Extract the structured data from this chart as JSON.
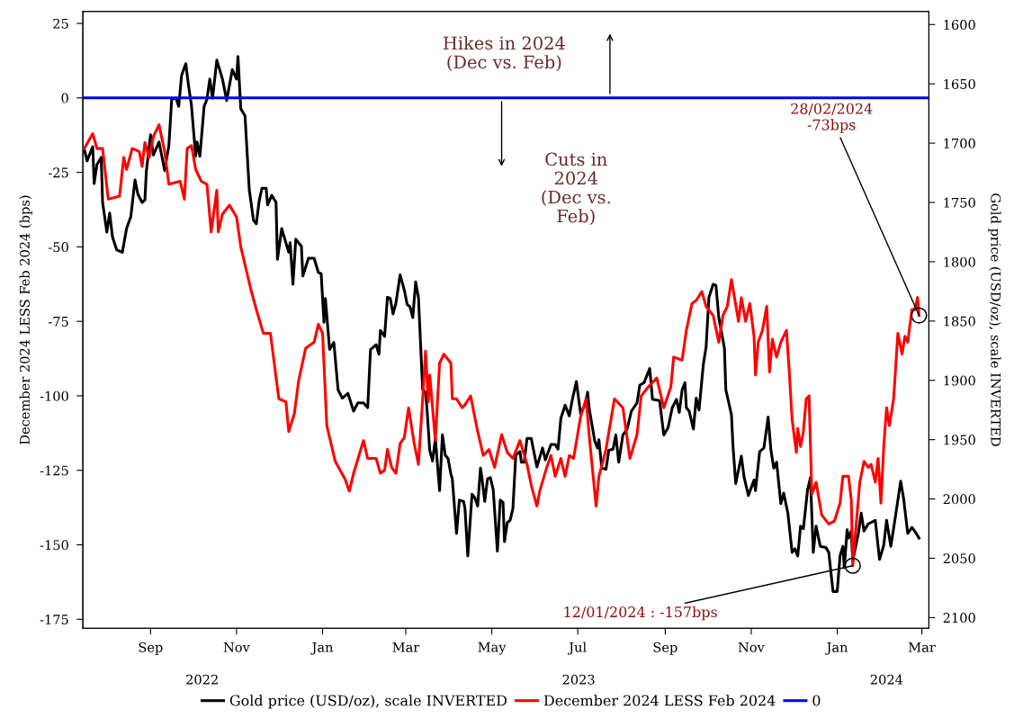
{
  "chart_data": {
    "type": "line",
    "ylabel": "December 2024 LESS Feb 2024 (bps)",
    "y2label": "Gold price (USD/oz), scale INVERTED",
    "xlim": [
      "2022-07-15",
      "2024-03-06"
    ],
    "xticks": [
      {
        "value": "2022-09-01",
        "label": "Sep"
      },
      {
        "value": "2022-11-01",
        "label": "Nov"
      },
      {
        "value": "2023-01-01",
        "label": "Jan"
      },
      {
        "value": "2023-03-01",
        "label": "Mar"
      },
      {
        "value": "2023-05-01",
        "label": "May"
      },
      {
        "value": "2023-07-01",
        "label": "Jul"
      },
      {
        "value": "2023-09-01",
        "label": "Sep"
      },
      {
        "value": "2023-11-01",
        "label": "Nov"
      },
      {
        "value": "2024-01-01",
        "label": "Jan"
      },
      {
        "value": "2024-03-01",
        "label": "Mar"
      }
    ],
    "ylim": [
      -178,
      29
    ],
    "yticks": [
      25,
      0,
      -25,
      -50,
      -75,
      -100,
      -125,
      -150,
      -175
    ],
    "y2lim": [
      2109,
      1589
    ],
    "y2ticks": [
      1600,
      1650,
      1700,
      1750,
      1800,
      1850,
      1900,
      1950,
      2000,
      2050,
      2100
    ],
    "grid": false,
    "legend": "bottom",
    "series": [
      {
        "name": "Gold price (USD/oz), scale INVERTED",
        "color": "#000000",
        "axis": "y2",
        "x": [
          "2022-07-16",
          "2022-07-18",
          "2022-07-22",
          "2022-07-23",
          "2022-07-25",
          "2022-07-28",
          "2022-07-29",
          "2022-08-01",
          "2022-08-03",
          "2022-08-05",
          "2022-08-08",
          "2022-08-12",
          "2022-08-15",
          "2022-08-18",
          "2022-08-21",
          "2022-08-23",
          "2022-08-26",
          "2022-08-28",
          "2022-08-29",
          "2022-09-01",
          "2022-09-03",
          "2022-09-07",
          "2022-09-11",
          "2022-09-14",
          "2022-09-16",
          "2022-09-19",
          "2022-09-21",
          "2022-09-23",
          "2022-09-26",
          "2022-09-28",
          "2022-09-30",
          "2022-10-03",
          "2022-10-04",
          "2022-10-06",
          "2022-10-09",
          "2022-10-11",
          "2022-10-13",
          "2022-10-15",
          "2022-10-18",
          "2022-10-22",
          "2022-10-25",
          "2022-10-29",
          "2022-11-01",
          "2022-11-02",
          "2022-11-04",
          "2022-11-07",
          "2022-11-10",
          "2022-11-13",
          "2022-11-15",
          "2022-11-17",
          "2022-11-19",
          "2022-11-22",
          "2022-11-23",
          "2022-11-26",
          "2022-11-29",
          "2022-11-30",
          "2022-12-03",
          "2022-12-08",
          "2022-12-09",
          "2022-12-11",
          "2022-12-13",
          "2022-12-17",
          "2022-12-18",
          "2022-12-22",
          "2022-12-26",
          "2022-12-29",
          "2022-12-31",
          "2023-01-02",
          "2023-01-03",
          "2023-01-06",
          "2023-01-09",
          "2023-01-12",
          "2023-01-15",
          "2023-01-17",
          "2023-01-19",
          "2023-01-23",
          "2023-01-26",
          "2023-01-30",
          "2023-02-02",
          "2023-02-04",
          "2023-02-08",
          "2023-02-10",
          "2023-02-11",
          "2023-02-14",
          "2023-02-16",
          "2023-02-18",
          "2023-02-20",
          "2023-02-22",
          "2023-02-25",
          "2023-02-28",
          "2023-03-02",
          "2023-03-04",
          "2023-03-06",
          "2023-03-08",
          "2023-03-10",
          "2023-03-13",
          "2023-03-15",
          "2023-03-16",
          "2023-03-18",
          "2023-03-20",
          "2023-03-22",
          "2023-03-25",
          "2023-03-27",
          "2023-03-29",
          "2023-03-31",
          "2023-04-02",
          "2023-04-03",
          "2023-04-06",
          "2023-04-08",
          "2023-04-11",
          "2023-04-12",
          "2023-04-14",
          "2023-04-17",
          "2023-04-19",
          "2023-04-21",
          "2023-04-23",
          "2023-04-24",
          "2023-04-26",
          "2023-04-28",
          "2023-04-30",
          "2023-05-02",
          "2023-05-05",
          "2023-05-07",
          "2023-05-09",
          "2023-05-10",
          "2023-05-12",
          "2023-05-14",
          "2023-05-16",
          "2023-05-18",
          "2023-05-21",
          "2023-05-22",
          "2023-05-24",
          "2023-05-26",
          "2023-05-29",
          "2023-06-02",
          "2023-06-06",
          "2023-06-08",
          "2023-06-12",
          "2023-06-15",
          "2023-06-17",
          "2023-06-19",
          "2023-06-22",
          "2023-06-25",
          "2023-06-27",
          "2023-06-30",
          "2023-07-03",
          "2023-07-06",
          "2023-07-08",
          "2023-07-09",
          "2023-07-13",
          "2023-07-15",
          "2023-07-16",
          "2023-07-18",
          "2023-07-21",
          "2023-07-23",
          "2023-07-26",
          "2023-07-28",
          "2023-07-30",
          "2023-08-02",
          "2023-08-05",
          "2023-08-08",
          "2023-08-12",
          "2023-08-14",
          "2023-08-17",
          "2023-08-21",
          "2023-08-23",
          "2023-08-28",
          "2023-08-31",
          "2023-09-03",
          "2023-09-06",
          "2023-09-09",
          "2023-09-11",
          "2023-09-13",
          "2023-09-15",
          "2023-09-16",
          "2023-09-18",
          "2023-09-21",
          "2023-09-23",
          "2023-09-25",
          "2023-09-28",
          "2023-09-30",
          "2023-10-02",
          "2023-10-05",
          "2023-10-07",
          "2023-10-09",
          "2023-10-13",
          "2023-10-14",
          "2023-10-18",
          "2023-10-19",
          "2023-10-21",
          "2023-10-25",
          "2023-10-27",
          "2023-10-30",
          "2023-11-03",
          "2023-11-04",
          "2023-11-07",
          "2023-11-10",
          "2023-11-13",
          "2023-11-15",
          "2023-11-17",
          "2023-11-19",
          "2023-11-22",
          "2023-11-24",
          "2023-11-27",
          "2023-11-30",
          "2023-12-02",
          "2023-12-04",
          "2023-12-06",
          "2023-12-08",
          "2023-12-11",
          "2023-12-13",
          "2023-12-15",
          "2023-12-17",
          "2023-12-20",
          "2023-12-24",
          "2023-12-26",
          "2023-12-29",
          "2024-01-01",
          "2024-01-03",
          "2024-01-05",
          "2024-01-06",
          "2024-01-08",
          "2024-01-09",
          "2024-01-11",
          "2024-01-12",
          "2024-01-16",
          "2024-01-18",
          "2024-01-20",
          "2024-01-23",
          "2024-01-28",
          "2024-01-31",
          "2024-02-03",
          "2024-02-05",
          "2024-02-08",
          "2024-02-11",
          "2024-02-15",
          "2024-02-17",
          "2024-02-20",
          "2024-02-23",
          "2024-02-26",
          "2024-02-28"
        ],
        "values": [
          1705,
          1715,
          1703,
          1734,
          1718,
          1712,
          1750,
          1775,
          1759,
          1779,
          1790,
          1792,
          1772,
          1762,
          1731,
          1743,
          1750,
          1748,
          1724,
          1693,
          1710,
          1699,
          1723,
          1702,
          1663,
          1662,
          1669,
          1643,
          1633,
          1652,
          1668,
          1711,
          1699,
          1711,
          1669,
          1663,
          1646,
          1662,
          1630,
          1646,
          1664,
          1638,
          1646,
          1627,
          1671,
          1677,
          1739,
          1765,
          1768,
          1749,
          1738,
          1738,
          1752,
          1744,
          1750,
          1798,
          1772,
          1792,
          1784,
          1819,
          1781,
          1787,
          1812,
          1797,
          1797,
          1809,
          1810,
          1851,
          1831,
          1874,
          1868,
          1908,
          1915,
          1913,
          1911,
          1926,
          1919,
          1919,
          1923,
          1874,
          1870,
          1878,
          1858,
          1863,
          1830,
          1831,
          1844,
          1835,
          1811,
          1824,
          1836,
          1838,
          1847,
          1817,
          1830,
          1908,
          1910,
          1923,
          1959,
          1968,
          1949,
          1993,
          1946,
          1963,
          1966,
          1979,
          1983,
          2029,
          2001,
          2002,
          2008,
          2048,
          1996,
          1999,
          2006,
          1974,
          1982,
          2002,
          1983,
          1982,
          1992,
          2044,
          2001,
          2003,
          2036,
          2020,
          2018,
          2008,
          1963,
          1960,
          1969,
          1969,
          1949,
          1949,
          1973,
          1957,
          1967,
          1954,
          1954,
          1958,
          1932,
          1921,
          1930,
          1917,
          1901,
          1928,
          1921,
          1910,
          1923,
          1951,
          1957,
          1950,
          1974,
          1975,
          1959,
          1958,
          1946,
          1969,
          1946,
          1941,
          1926,
          1919,
          1904,
          1902,
          1890,
          1916,
          1917,
          1946,
          1940,
          1923,
          1916,
          1927,
          1908,
          1902,
          1923,
          1926,
          1941,
          1915,
          1925,
          1887,
          1872,
          1830,
          1819,
          1820,
          1847,
          1873,
          1908,
          1929,
          1954,
          1987,
          1964,
          1982,
          1997,
          1984,
          1993,
          1960,
          1957,
          1931,
          1959,
          1974,
          1969,
          2004,
          1995,
          2012,
          2045,
          2042,
          2048,
          2023,
          2025,
          1992,
          1982,
          2045,
          2023,
          2040,
          2041,
          2045,
          2078,
          2078,
          2048,
          2040,
          2058,
          2026,
          2033,
          2027,
          2052,
          2029,
          2012,
          2027,
          2021,
          2018,
          2051,
          2039,
          2018,
          2040,
          2017,
          1985,
          1999,
          2029,
          2024,
          2029,
          2033
        ]
      },
      {
        "name": "December 2024 LESS Feb 2024",
        "color": "#ff0000",
        "x": [
          "2022-07-16",
          "2022-07-22",
          "2022-07-25",
          "2022-07-29",
          "2022-08-02",
          "2022-08-10",
          "2022-08-13",
          "2022-08-15",
          "2022-08-19",
          "2022-08-24",
          "2022-08-26",
          "2022-08-28",
          "2022-08-31",
          "2022-09-03",
          "2022-09-07",
          "2022-09-11",
          "2022-09-14",
          "2022-09-22",
          "2022-09-25",
          "2022-09-27",
          "2022-09-30",
          "2022-10-03",
          "2022-10-07",
          "2022-10-11",
          "2022-10-14",
          "2022-10-18",
          "2022-10-19",
          "2022-10-22",
          "2022-10-27",
          "2022-11-01",
          "2022-11-04",
          "2022-11-11",
          "2022-11-15",
          "2022-11-20",
          "2022-11-25",
          "2022-12-01",
          "2022-12-06",
          "2022-12-08",
          "2022-12-12",
          "2022-12-15",
          "2022-12-20",
          "2022-12-26",
          "2022-12-29",
          "2023-01-01",
          "2023-01-04",
          "2023-01-10",
          "2023-01-17",
          "2023-01-20",
          "2023-01-23",
          "2023-01-30",
          "2023-02-02",
          "2023-02-08",
          "2023-02-11",
          "2023-02-14",
          "2023-02-16",
          "2023-02-19",
          "2023-02-22",
          "2023-02-25",
          "2023-02-28",
          "2023-03-03",
          "2023-03-07",
          "2023-03-10",
          "2023-03-13",
          "2023-03-15",
          "2023-03-17",
          "2023-03-18",
          "2023-03-22",
          "2023-03-25",
          "2023-03-28",
          "2023-04-02",
          "2023-04-03",
          "2023-04-06",
          "2023-04-10",
          "2023-04-12",
          "2023-04-16",
          "2023-04-21",
          "2023-04-25",
          "2023-04-29",
          "2023-05-03",
          "2023-05-08",
          "2023-05-12",
          "2023-05-16",
          "2023-05-21",
          "2023-05-26",
          "2023-05-29",
          "2023-06-02",
          "2023-06-04",
          "2023-06-09",
          "2023-06-12",
          "2023-06-15",
          "2023-06-19",
          "2023-06-22",
          "2023-06-25",
          "2023-06-28",
          "2023-07-03",
          "2023-07-07",
          "2023-07-09",
          "2023-07-14",
          "2023-07-16",
          "2023-07-21",
          "2023-07-27",
          "2023-08-02",
          "2023-08-07",
          "2023-08-12",
          "2023-08-15",
          "2023-08-20",
          "2023-08-26",
          "2023-08-31",
          "2023-09-05",
          "2023-09-07",
          "2023-09-13",
          "2023-09-16",
          "2023-09-20",
          "2023-09-23",
          "2023-09-27",
          "2023-09-30",
          "2023-10-05",
          "2023-10-09",
          "2023-10-12",
          "2023-10-15",
          "2023-10-18",
          "2023-10-23",
          "2023-10-25",
          "2023-10-28",
          "2023-10-31",
          "2023-11-03",
          "2023-11-04",
          "2023-11-06",
          "2023-11-09",
          "2023-11-12",
          "2023-11-14",
          "2023-11-16",
          "2023-11-19",
          "2023-11-22",
          "2023-11-26",
          "2023-11-28",
          "2023-11-30",
          "2023-12-03",
          "2023-12-04",
          "2023-12-06",
          "2023-12-08",
          "2023-12-10",
          "2023-12-12",
          "2023-12-14",
          "2023-12-17",
          "2023-12-21",
          "2023-12-26",
          "2023-12-30",
          "2024-01-03",
          "2024-01-05",
          "2024-01-09",
          "2024-01-11",
          "2024-01-12",
          "2024-01-17",
          "2024-01-20",
          "2024-01-23",
          "2024-01-25",
          "2024-01-28",
          "2024-01-30",
          "2024-02-01",
          "2024-02-03",
          "2024-02-05",
          "2024-02-07",
          "2024-02-10",
          "2024-02-13",
          "2024-02-16",
          "2024-02-18",
          "2024-02-20",
          "2024-02-23",
          "2024-02-25",
          "2024-02-27",
          "2024-02-28"
        ],
        "values": [
          -17,
          -12,
          -17,
          -17,
          -34,
          -33,
          -20,
          -24,
          -17,
          -18,
          -23,
          -15,
          -20,
          -13,
          -9,
          -18,
          -29,
          -28,
          -34,
          -17,
          -16,
          -24,
          -28,
          -29,
          -45,
          -31,
          -45,
          -39,
          -36,
          -40,
          -50,
          -64,
          -71,
          -79,
          -79,
          -101,
          -102,
          -112,
          -106,
          -95,
          -84,
          -82,
          -76,
          -79,
          -110,
          -122,
          -128,
          -132,
          -126,
          -115,
          -121,
          -121,
          -126,
          -125,
          -118,
          -124,
          -126,
          -116,
          -114,
          -104,
          -116,
          -123,
          -101,
          -85,
          -102,
          -93,
          -115,
          -89,
          -86,
          -89,
          -101,
          -101,
          -104,
          -103,
          -100,
          -112,
          -120,
          -118,
          -124,
          -113,
          -119,
          -121,
          -115,
          -123,
          -130,
          -137,
          -132,
          -124,
          -120,
          -127,
          -121,
          -127,
          -120,
          -121,
          -107,
          -101,
          -113,
          -137,
          -127,
          -118,
          -101,
          -104,
          -121,
          -113,
          -100,
          -97,
          -94,
          -104,
          -97,
          -87,
          -88,
          -78,
          -69,
          -68,
          -65,
          -70,
          -73,
          -82,
          -73,
          -70,
          -61,
          -75,
          -67,
          -75,
          -69,
          -80,
          -93,
          -82,
          -78,
          -70,
          -92,
          -81,
          -87,
          -82,
          -78,
          -92,
          -108,
          -119,
          -111,
          -117,
          -112,
          -101,
          -100,
          -133,
          -129,
          -140,
          -143,
          -142,
          -136,
          -127,
          -127,
          -135,
          -157,
          -129,
          -122,
          -124,
          -123,
          -129,
          -121,
          -136,
          -117,
          -104,
          -110,
          -101,
          -79,
          -86,
          -80,
          -82,
          -71,
          -71,
          -67,
          -73
        ]
      }
    ],
    "ref_lines": [
      {
        "axis": "y",
        "value": 0,
        "label": "0",
        "color": "#0000ff",
        "line_style": "solid"
      }
    ],
    "annotations": [
      "Hikes in 2024\n(Dec vs. Feb)",
      "Cuts in\n2024\n(Dec vs.\nFeb)",
      {
        "text": "28/02/2024\n-73bps",
        "x": "2024-02-28",
        "y": -73
      },
      {
        "text": "12/01/2024 : -157bps",
        "x": "2024-01-12",
        "y": -157
      },
      "2022",
      "2023",
      "2024"
    ]
  }
}
